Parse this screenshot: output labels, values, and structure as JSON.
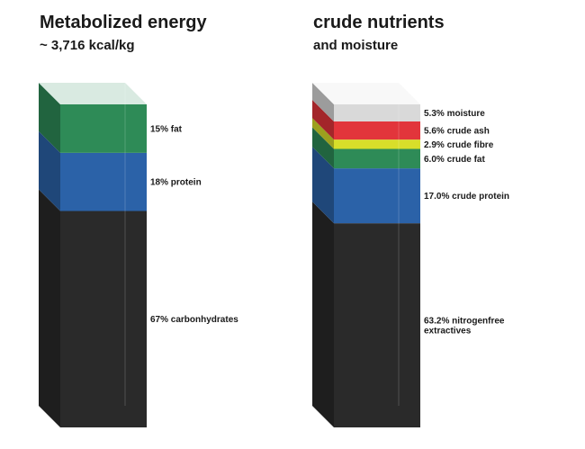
{
  "chart_data": [
    {
      "type": "bar",
      "title": "Metabolized energy",
      "subtitle": "~ 3,716 kcal/kg",
      "stacked": true,
      "segments": [
        {
          "value": 67,
          "label": "67% carbonhydrates",
          "color": "#2a2a2a"
        },
        {
          "value": 18,
          "label": "18% protein",
          "color": "#2b62a8"
        },
        {
          "value": 15,
          "label": "15% fat",
          "color": "#2e8b57"
        }
      ]
    },
    {
      "type": "bar",
      "title": "crude nutrients",
      "subtitle": "and moisture",
      "stacked": true,
      "segments": [
        {
          "value": 63.2,
          "label": "63.2% nitrogenfree extractives",
          "color": "#2a2a2a"
        },
        {
          "value": 17.0,
          "label": "17.0% crude protein",
          "color": "#2b62a8"
        },
        {
          "value": 6.0,
          "label": "6.0% crude fat",
          "color": "#2e8b57"
        },
        {
          "value": 2.9,
          "label": "2.9% crude fibre",
          "color": "#d8de2a"
        },
        {
          "value": 5.6,
          "label": "5.6% crude ash",
          "color": "#e2353b"
        },
        {
          "value": 5.3,
          "label": "5.3% moisture",
          "color": "#d9d9d9"
        }
      ]
    }
  ]
}
